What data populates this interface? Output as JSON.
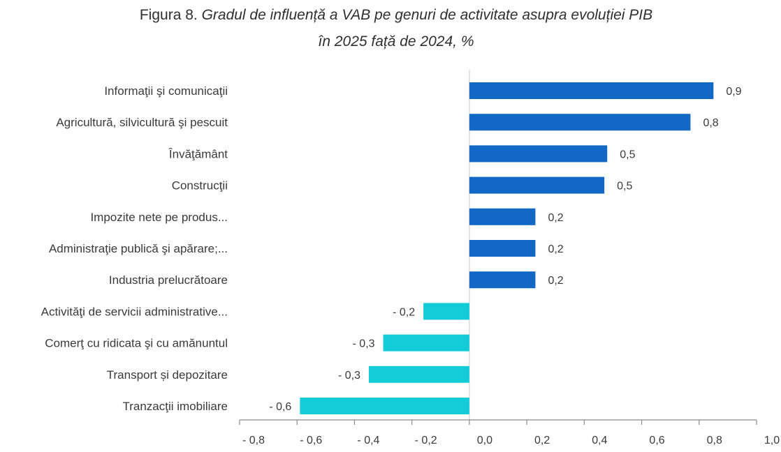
{
  "chart_data": {
    "type": "bar",
    "orientation": "horizontal",
    "title_prefix": "Figura 8.",
    "title_main": "Gradul de influență a VAB pe genuri de activitate asupra evoluției PIB",
    "title_line2": "în 2025 față de 2024, %",
    "xlabel": "",
    "ylabel": "",
    "xlim": [
      -0.8,
      1.0
    ],
    "x_ticks": [
      -0.8,
      -0.6,
      -0.4,
      -0.2,
      0.0,
      0.2,
      0.4,
      0.6,
      0.8,
      1.0
    ],
    "x_tick_labels": [
      "- 0,8",
      "- 0,6",
      "- 0,4",
      "- 0,2",
      "0,0",
      "0,2",
      "0,4",
      "0,6",
      "0,8",
      "1,0"
    ],
    "grid": false,
    "legend": "none",
    "categories": [
      "Informaţii şi comunicaţii",
      "Agricultură, silvicultură şi pescuit",
      "Învăţământ",
      "Construcţii",
      "Impozite nete pe produs...",
      "Administraţie publică şi apărare;...",
      "Industria prelucrătoare",
      "Activităţi de servicii administrative...",
      "Comerţ cu ridicata şi cu amănuntul",
      "Transport și depozitare",
      "Tranzacţii imobiliare"
    ],
    "values": [
      0.85,
      0.77,
      0.48,
      0.47,
      0.23,
      0.23,
      0.23,
      -0.16,
      -0.3,
      -0.35,
      -0.59
    ],
    "data_labels": [
      "0,9",
      "0,8",
      "0,5",
      "0,5",
      "0,2",
      "0,2",
      "0,2",
      "- 0,2",
      "- 0,3",
      "- 0,3",
      "- 0,6"
    ],
    "colors": {
      "positive": "#1268c4",
      "negative": "#14ccd8",
      "axis": "#8a8a8a",
      "zero_line": "#d9d9d9"
    }
  }
}
